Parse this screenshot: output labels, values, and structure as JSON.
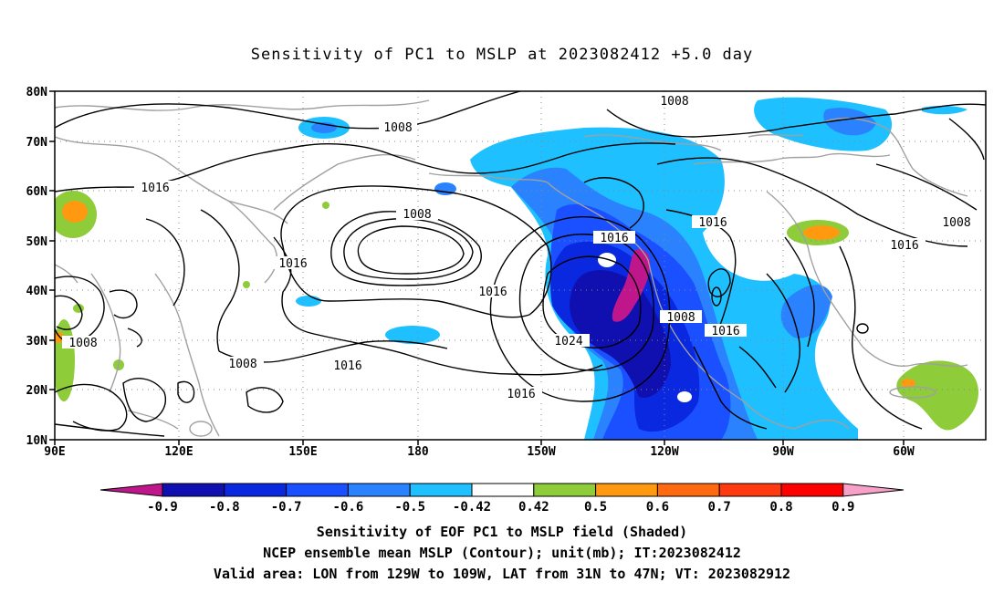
{
  "title": "Sensitivity of PC1 to MSLP at 2023082412 +5.0 day",
  "lat_labels": [
    "80N",
    "70N",
    "60N",
    "50N",
    "40N",
    "30N",
    "20N",
    "10N"
  ],
  "lon_labels": [
    "90E",
    "120E",
    "150E",
    "180",
    "150W",
    "120W",
    "90W",
    "60W"
  ],
  "contour_labels": [
    "1008",
    "1016",
    "1008",
    "1016",
    "1016",
    "1016",
    "1008",
    "1016",
    "1016",
    "1024",
    "1008",
    "1016",
    "1008",
    "1016",
    "1016",
    "1016"
  ],
  "colorbar": {
    "ticks": [
      "-0.9",
      "-0.8",
      "-0.7",
      "-0.6",
      "-0.5",
      "-0.42",
      "0.42",
      "0.5",
      "0.6",
      "0.7",
      "0.8",
      "0.9"
    ],
    "colors": [
      "#c0168c",
      "#1010b0",
      "#0a28e0",
      "#1a50ff",
      "#2a82ff",
      "#1ec0ff",
      "#ffffff",
      "#8ecc3a",
      "#ff9a10",
      "#ff6a10",
      "#ff3a10",
      "#ff0000",
      "#f7a0c8"
    ]
  },
  "captions": [
    "Sensitivity of EOF PC1 to MSLP field (Shaded)",
    "NCEP ensemble mean MSLP (Contour); unit(mb); IT:2023082412",
    "Valid area: LON from 129W to 109W, LAT from 31N to 47N; VT: 2023082912"
  ]
}
